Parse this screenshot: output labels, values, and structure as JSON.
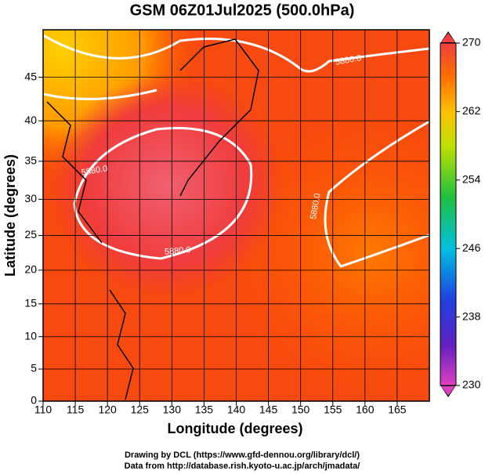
{
  "title": "GSM 06Z01Jul2025 (500.0hPa)",
  "x_axis": {
    "label": "Longitude (degrees)",
    "lim": [
      110,
      170
    ],
    "ticks": [
      110,
      115,
      120,
      125,
      130,
      135,
      140,
      145,
      150,
      155,
      160,
      165
    ]
  },
  "y_axis": {
    "label": "Latitude  (degrees)",
    "lim": [
      0,
      50
    ],
    "ticks": [
      0,
      5,
      10,
      15,
      20,
      25,
      30,
      35,
      40,
      45
    ],
    "projection": "mercator"
  },
  "colorbar": {
    "lim": [
      230,
      270
    ],
    "ticks": [
      230,
      238,
      246,
      254,
      262,
      270
    ]
  },
  "contour_labels": [
    "5880.0",
    "5880.0",
    "5880.0",
    "5880.0"
  ],
  "footer": [
    "Drawing by DCL (https://www.gfd-dennou.org/library/dcl/)",
    "Data from http://database.rish.kyoto-u.ac.jp/arch/jmadata/"
  ]
}
